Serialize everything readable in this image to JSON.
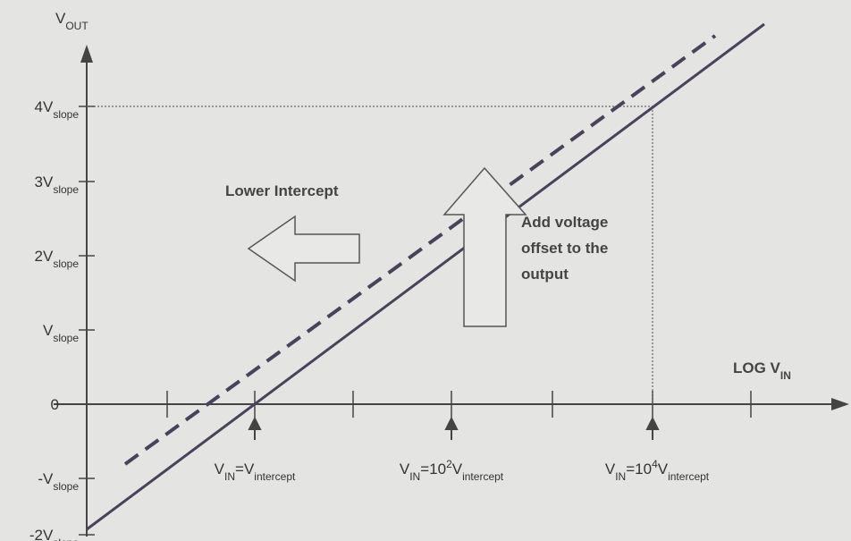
{
  "y_label": [
    {
      "text": "V"
    },
    {
      "sub": "OUT"
    }
  ],
  "x_label": [
    {
      "text": "LOG V"
    },
    {
      "sub": "IN"
    }
  ],
  "y_ticks": [
    [
      {
        "text": "4V"
      },
      {
        "sub": "slope"
      }
    ],
    [
      {
        "text": "3V"
      },
      {
        "sub": "slope"
      }
    ],
    [
      {
        "text": "2V"
      },
      {
        "sub": "slope"
      }
    ],
    [
      {
        "text": "V"
      },
      {
        "sub": "slope"
      }
    ],
    [
      {
        "text": "0"
      }
    ],
    [
      {
        "text": "-V"
      },
      {
        "sub": "slope"
      }
    ],
    [
      {
        "text": "-2V"
      },
      {
        "sub": "slope"
      }
    ]
  ],
  "markers": [
    [
      {
        "text": "V"
      },
      {
        "sub": "IN"
      },
      {
        "text": "=V"
      },
      {
        "sub": "intercept"
      }
    ],
    [
      {
        "text": "V"
      },
      {
        "sub": "IN"
      },
      {
        "text": "=10"
      },
      {
        "sup": "2"
      },
      {
        "text": "V"
      },
      {
        "sub": "intercept"
      }
    ],
    [
      {
        "text": "V"
      },
      {
        "sub": "IN"
      },
      {
        "text": "=10"
      },
      {
        "sup": "4"
      },
      {
        "text": "V"
      },
      {
        "sub": "intercept"
      }
    ]
  ],
  "annotations": {
    "lower_intercept": "Lower Intercept",
    "offset": [
      "Add voltage",
      "offset to the",
      "output"
    ]
  }
}
